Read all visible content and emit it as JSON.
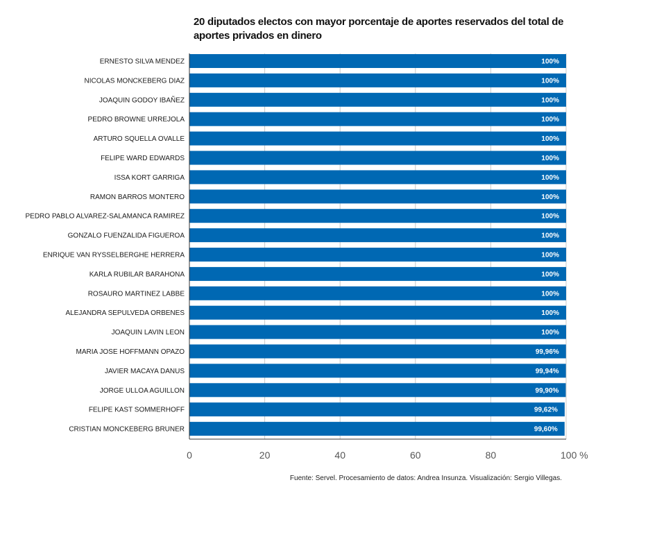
{
  "chart_data": {
    "type": "bar",
    "orientation": "horizontal",
    "title": "20 diputados electos con mayor porcentaje de aportes reservados del total de aportes privados en dinero",
    "categories": [
      "ERNESTO SILVA MENDEZ",
      "NICOLAS MONCKEBERG DIAZ",
      "JOAQUIN GODOY IBAÑEZ",
      "PEDRO BROWNE URREJOLA",
      "ARTURO SQUELLA OVALLE",
      "FELIPE WARD EDWARDS",
      "ISSA KORT GARRIGA",
      "RAMON BARROS MONTERO",
      "PEDRO PABLO ALVAREZ-SALAMANCA RAMIREZ",
      "GONZALO FUENZALIDA FIGUEROA",
      "ENRIQUE VAN RYSSELBERGHE HERRERA",
      "KARLA RUBILAR BARAHONA",
      "ROSAURO MARTINEZ LABBE",
      "ALEJANDRA SEPULVEDA ORBENES",
      "JOAQUIN LAVIN LEON",
      "MARIA JOSE HOFFMANN OPAZO",
      "JAVIER MACAYA DANUS",
      "JORGE ULLOA AGUILLON",
      "FELIPE KAST SOMMERHOFF",
      "CRISTIAN MONCKEBERG BRUNER"
    ],
    "values": [
      100,
      100,
      100,
      100,
      100,
      100,
      100,
      100,
      100,
      100,
      100,
      100,
      100,
      100,
      100,
      99.96,
      99.94,
      99.9,
      99.62,
      99.6
    ],
    "value_labels": [
      "100%",
      "100%",
      "100%",
      "100%",
      "100%",
      "100%",
      "100%",
      "100%",
      "100%",
      "100%",
      "100%",
      "100%",
      "100%",
      "100%",
      "100%",
      "99,96%",
      "99,94%",
      "99,90%",
      "99,62%",
      "99,60%"
    ],
    "xlim": [
      0,
      100
    ],
    "x_ticks": [
      0,
      20,
      40,
      60,
      80,
      100
    ],
    "x_tick_labels": [
      "0",
      "20",
      "40",
      "60",
      "80",
      "100 %"
    ],
    "bar_color": "#0068b3",
    "grid": true,
    "legend": "none"
  },
  "source_text": "Fuente: Servel. Procesamiento de datos: Andrea Insunza. Visualización: Sergio Villegas."
}
